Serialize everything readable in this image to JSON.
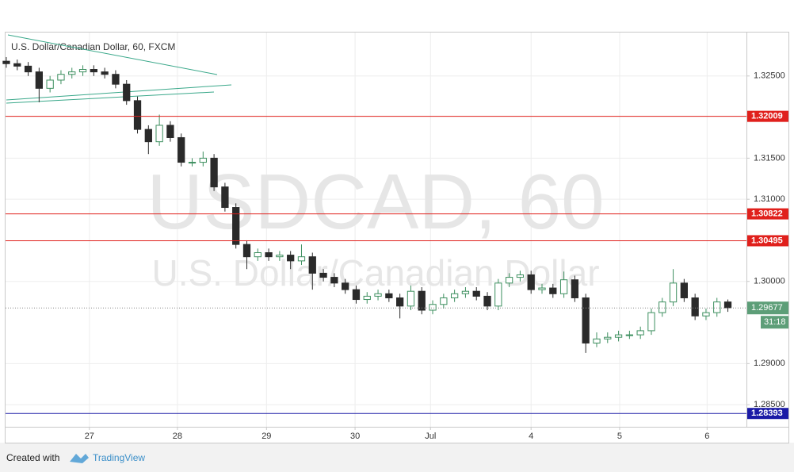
{
  "chart_data": {
    "type": "candlestick",
    "title": "U.S. Dollar/Canadian Dollar, 60, FXCM",
    "watermark": [
      "USDCAD, 60",
      "U.S. Dollar/Canadian Dollar"
    ],
    "x": [
      0,
      1,
      2,
      3,
      4,
      5,
      6,
      7,
      8,
      9,
      10,
      11,
      12,
      13,
      14,
      15,
      16,
      17,
      18,
      19,
      20,
      21,
      22,
      23,
      24,
      25,
      26,
      27,
      28,
      29,
      30,
      31,
      32,
      33,
      34,
      35,
      36,
      37,
      38,
      39,
      40,
      41,
      42,
      43,
      44,
      45,
      46,
      47,
      48,
      49,
      50,
      51,
      52,
      53,
      54,
      55,
      56,
      57,
      58,
      59,
      60,
      61,
      62,
      63,
      64,
      65,
      66
    ],
    "open": [
      1.3268,
      1.3265,
      1.3262,
      1.3255,
      1.3235,
      1.3245,
      1.3252,
      1.3255,
      1.3258,
      1.3255,
      1.3252,
      1.324,
      1.322,
      1.3185,
      1.317,
      1.319,
      1.3175,
      1.3145,
      1.3145,
      1.315,
      1.3115,
      1.309,
      1.3045,
      1.303,
      1.3035,
      1.303,
      1.3032,
      1.3025,
      1.303,
      1.301,
      1.3005,
      1.2998,
      1.299,
      1.2978,
      1.2982,
      1.2985,
      1.298,
      1.297,
      1.2988,
      1.2965,
      1.2972,
      1.298,
      1.2985,
      1.2988,
      1.2982,
      1.297,
      1.2998,
      1.3005,
      1.3008,
      1.299,
      1.2992,
      1.2985,
      1.3002,
      1.298,
      1.2925,
      1.293,
      1.2932,
      1.2935,
      1.2935,
      1.294,
      1.2962,
      1.2975,
      1.2998,
      1.298,
      1.2958,
      1.2962,
      1.2975
    ],
    "high": [
      1.3273,
      1.327,
      1.3267,
      1.326,
      1.325,
      1.3257,
      1.326,
      1.3263,
      1.3263,
      1.326,
      1.3257,
      1.3245,
      1.3225,
      1.319,
      1.3203,
      1.3195,
      1.318,
      1.315,
      1.3158,
      1.3155,
      1.312,
      1.3095,
      1.305,
      1.304,
      1.304,
      1.3037,
      1.3037,
      1.3045,
      1.3035,
      1.3015,
      1.301,
      1.3003,
      1.2995,
      1.2987,
      1.299,
      1.299,
      1.2985,
      1.2995,
      1.2993,
      1.2977,
      1.2985,
      1.299,
      1.2993,
      1.2993,
      1.2987,
      1.3003,
      1.301,
      1.3013,
      1.3013,
      1.2997,
      1.2997,
      1.3012,
      1.3007,
      1.2985,
      1.2938,
      1.2938,
      1.294,
      1.294,
      1.2945,
      1.2967,
      1.298,
      1.3015,
      1.3003,
      1.2985,
      1.2967,
      1.298,
      1.2978
    ],
    "low": [
      1.326,
      1.3257,
      1.325,
      1.3218,
      1.323,
      1.324,
      1.3247,
      1.325,
      1.325,
      1.3247,
      1.3235,
      1.3215,
      1.318,
      1.3155,
      1.3165,
      1.317,
      1.314,
      1.314,
      1.314,
      1.311,
      1.3085,
      1.304,
      1.3015,
      1.3025,
      1.3025,
      1.3025,
      1.3015,
      1.302,
      1.299,
      1.3,
      1.2993,
      1.2985,
      1.2973,
      1.2973,
      1.2977,
      1.2975,
      1.2955,
      1.2965,
      1.296,
      1.296,
      1.2967,
      1.2975,
      1.298,
      1.2977,
      1.2965,
      1.2965,
      1.2993,
      1.3,
      1.2985,
      1.2985,
      1.298,
      1.298,
      1.2975,
      1.2913,
      1.292,
      1.2925,
      1.2927,
      1.293,
      1.293,
      1.2935,
      1.2957,
      1.297,
      1.2975,
      1.2953,
      1.2953,
      1.2957,
      1.2963
    ],
    "close": [
      1.3265,
      1.3262,
      1.3255,
      1.3235,
      1.3245,
      1.3252,
      1.3255,
      1.3258,
      1.3255,
      1.3252,
      1.324,
      1.322,
      1.3185,
      1.317,
      1.319,
      1.3175,
      1.3145,
      1.3145,
      1.315,
      1.3115,
      1.309,
      1.3045,
      1.303,
      1.3035,
      1.303,
      1.3032,
      1.3025,
      1.303,
      1.301,
      1.3005,
      1.2998,
      1.299,
      1.2978,
      1.2982,
      1.2985,
      1.298,
      1.297,
      1.2988,
      1.2965,
      1.2972,
      1.298,
      1.2985,
      1.2988,
      1.2982,
      1.297,
      1.2998,
      1.3005,
      1.3008,
      1.299,
      1.2992,
      1.2985,
      1.3002,
      1.298,
      1.2925,
      1.293,
      1.2932,
      1.2935,
      1.2935,
      1.294,
      1.2962,
      1.2975,
      1.2998,
      1.298,
      1.2958,
      1.2962,
      1.2975,
      1.2968
    ],
    "up_color": "#3d8f5f",
    "down_color": "#2a2a2a",
    "xlim": [
      -0.07,
      67.7
    ],
    "ylim": [
      1.28231,
      1.33029
    ],
    "xticks": [
      {
        "value": 7.6,
        "label": "27"
      },
      {
        "value": 15.65,
        "label": "28"
      },
      {
        "value": 23.8,
        "label": "29"
      },
      {
        "value": 31.9,
        "label": "30"
      },
      {
        "value": 38.8,
        "label": "Jul"
      },
      {
        "value": 48,
        "label": "4"
      },
      {
        "value": 56.1,
        "label": "5"
      },
      {
        "value": 64.1,
        "label": "6"
      }
    ],
    "yticks": [
      {
        "value": 1.325,
        "label": "1.32500"
      },
      {
        "value": 1.315,
        "label": "1.31500"
      },
      {
        "value": 1.31,
        "label": "1.31000"
      },
      {
        "value": 1.3,
        "label": "1.30000"
      },
      {
        "value": 1.29,
        "label": "1.29000"
      },
      {
        "value": 1.285,
        "label": "1.28500"
      }
    ],
    "grid": true,
    "levels": [
      {
        "value": 1.32009,
        "color": "#e0201c"
      },
      {
        "value": 1.30822,
        "color": "#e0201c"
      },
      {
        "value": 1.30495,
        "color": "#e0201c"
      },
      {
        "value": 1.28393,
        "color": "#1a1aa6"
      }
    ],
    "last_price": {
      "value": 1.29677,
      "color": "#5d9e78"
    },
    "countdown": "31:18"
  },
  "footer": {
    "created": "Created with",
    "brand": "TradingView"
  }
}
